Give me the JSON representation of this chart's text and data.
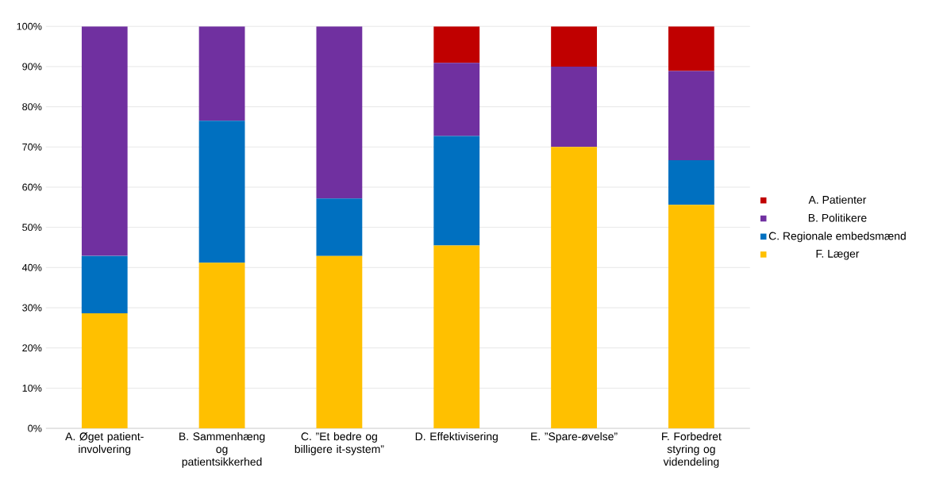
{
  "chart_data": {
    "type": "bar",
    "stacked": true,
    "categories": [
      "A. Øget patient-involvering",
      "B. Sammenhæng og patientsikkerhed",
      "C. ”Et bedre og billigere it-system”",
      "D. Effektivisering",
      "E. ”Spare-øvelse”",
      "F. Forbedret styring og videndeling"
    ],
    "series": [
      {
        "name": "F. Læger",
        "color": "#ffc000",
        "values": [
          28.6,
          41.2,
          42.9,
          45.5,
          70.0,
          55.6
        ]
      },
      {
        "name": "C. Regionale embedsmænd",
        "color": "#0070c0",
        "values": [
          14.3,
          35.3,
          14.3,
          27.2,
          0,
          11.1
        ]
      },
      {
        "name": "B. Politikere",
        "color": "#7030a0",
        "values": [
          57.1,
          23.5,
          42.8,
          18.2,
          20.0,
          22.2
        ]
      },
      {
        "name": "A. Patienter",
        "color": "#c00000",
        "values": [
          0,
          0,
          0,
          9.1,
          10.0,
          11.1
        ]
      }
    ],
    "ylim": [
      0,
      100
    ],
    "yticks": [
      {
        "value": 0,
        "label": "0%"
      },
      {
        "value": 10,
        "label": "10%"
      },
      {
        "value": 20,
        "label": "20%"
      },
      {
        "value": 30,
        "label": "30%"
      },
      {
        "value": 40,
        "label": "40%"
      },
      {
        "value": 50,
        "label": "50%"
      },
      {
        "value": 60,
        "label": "60%"
      },
      {
        "value": 70,
        "label": "70%"
      },
      {
        "value": 80,
        "label": "80%"
      },
      {
        "value": 90,
        "label": "90%"
      },
      {
        "value": 100,
        "label": "100%"
      }
    ],
    "grid": "y",
    "legend": "right"
  }
}
